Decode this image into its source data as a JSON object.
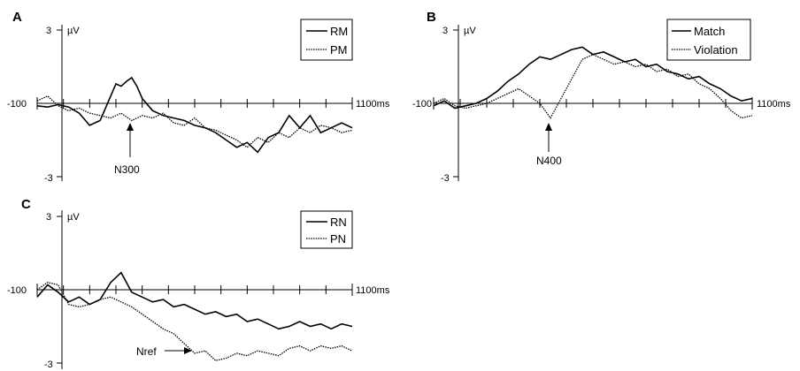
{
  "chart_data": [
    {
      "panel": "A",
      "type": "line",
      "x_start_label": "-100",
      "x_end_label": "1100ms",
      "y_top_label": "3",
      "y_bottom_label": "-3",
      "y_unit": "µV",
      "xlim": [
        -100,
        1100
      ],
      "ylim": [
        -3,
        3
      ],
      "legend_position": "top-right",
      "annotation": {
        "text": "N300",
        "x": 210,
        "y": -0.65,
        "direction": "up"
      },
      "series": [
        {
          "name": "RM",
          "style": "solid",
          "x": [
            -100,
            -60,
            -20,
            20,
            60,
            100,
            140,
            180,
            200,
            220,
            240,
            260,
            280,
            300,
            340,
            380,
            420,
            460,
            500,
            540,
            580,
            620,
            660,
            700,
            740,
            780,
            820,
            860,
            900,
            940,
            980,
            1020,
            1060,
            1100
          ],
          "y": [
            -0.1,
            -0.15,
            -0.05,
            -0.15,
            -0.4,
            -0.9,
            -0.7,
            0.3,
            0.8,
            0.7,
            0.9,
            1.05,
            0.7,
            0.2,
            -0.3,
            -0.5,
            -0.6,
            -0.7,
            -0.9,
            -1.0,
            -1.2,
            -1.5,
            -1.8,
            -1.6,
            -2.0,
            -1.4,
            -1.2,
            -0.5,
            -1.0,
            -0.5,
            -1.2,
            -1.0,
            -0.8,
            -1.0
          ]
        },
        {
          "name": "PM",
          "style": "dotted",
          "x": [
            -100,
            -60,
            -20,
            20,
            60,
            100,
            140,
            180,
            220,
            260,
            300,
            340,
            380,
            420,
            460,
            500,
            540,
            580,
            620,
            660,
            700,
            740,
            780,
            820,
            860,
            900,
            940,
            980,
            1020,
            1060,
            1100
          ],
          "y": [
            0.1,
            0.3,
            -0.1,
            -0.3,
            -0.2,
            -0.4,
            -0.5,
            -0.6,
            -0.4,
            -0.7,
            -0.5,
            -0.6,
            -0.4,
            -0.8,
            -0.9,
            -0.6,
            -1.0,
            -1.1,
            -1.3,
            -1.5,
            -1.8,
            -1.4,
            -1.6,
            -1.2,
            -1.4,
            -1.0,
            -1.2,
            -0.9,
            -1.0,
            -1.2,
            -1.1
          ]
        }
      ]
    },
    {
      "panel": "B",
      "type": "line",
      "x_start_label": "-100",
      "x_end_label": "1100ms",
      "y_top_label": "3",
      "y_bottom_label": "-3",
      "y_unit": "µV",
      "xlim": [
        -100,
        1100
      ],
      "ylim": [
        -3,
        3
      ],
      "legend_position": "top-right",
      "annotation": {
        "text": "N400",
        "x": 340,
        "y": -0.7,
        "direction": "up"
      },
      "series": [
        {
          "name": "Match",
          "style": "solid",
          "x": [
            -100,
            -60,
            -20,
            20,
            60,
            100,
            140,
            180,
            220,
            260,
            300,
            340,
            380,
            420,
            460,
            500,
            540,
            580,
            620,
            660,
            700,
            740,
            780,
            820,
            860,
            900,
            940,
            980,
            1020,
            1060,
            1100
          ],
          "y": [
            -0.1,
            0.1,
            -0.2,
            -0.1,
            0.0,
            0.2,
            0.5,
            0.9,
            1.2,
            1.6,
            1.9,
            1.8,
            2.0,
            2.2,
            2.3,
            2.0,
            2.1,
            1.9,
            1.7,
            1.8,
            1.5,
            1.6,
            1.3,
            1.2,
            1.0,
            1.1,
            0.8,
            0.6,
            0.3,
            0.1,
            0.2
          ]
        },
        {
          "name": "Violation",
          "style": "dotted",
          "x": [
            -100,
            -60,
            -20,
            20,
            60,
            100,
            140,
            180,
            220,
            260,
            300,
            340,
            380,
            420,
            460,
            500,
            540,
            580,
            620,
            660,
            700,
            740,
            780,
            820,
            860,
            900,
            940,
            980,
            1020,
            1060,
            1100
          ],
          "y": [
            0.0,
            0.2,
            -0.1,
            -0.2,
            -0.1,
            0.0,
            0.2,
            0.4,
            0.6,
            0.3,
            0.0,
            -0.6,
            0.2,
            1.0,
            1.8,
            2.0,
            1.8,
            1.6,
            1.7,
            1.5,
            1.6,
            1.3,
            1.4,
            1.1,
            1.2,
            0.8,
            0.6,
            0.2,
            -0.3,
            -0.6,
            -0.5
          ]
        }
      ]
    },
    {
      "panel": "C",
      "type": "line",
      "x_start_label": "-100",
      "x_end_label": "1100ms",
      "y_top_label": "3",
      "y_bottom_label": "-3",
      "y_unit": "µV",
      "xlim": [
        -100,
        1100
      ],
      "ylim": [
        -3,
        3
      ],
      "legend_position": "top-right",
      "annotation": {
        "text": "Nref",
        "x": 280,
        "y": -2.2,
        "direction": "right"
      },
      "series": [
        {
          "name": "RN",
          "style": "solid",
          "x": [
            -100,
            -60,
            -20,
            20,
            60,
            100,
            140,
            180,
            220,
            260,
            300,
            340,
            380,
            420,
            460,
            500,
            540,
            580,
            620,
            660,
            700,
            740,
            780,
            820,
            860,
            900,
            940,
            980,
            1020,
            1060,
            1100
          ],
          "y": [
            -0.3,
            0.2,
            -0.1,
            -0.5,
            -0.3,
            -0.6,
            -0.4,
            0.3,
            0.7,
            -0.1,
            -0.3,
            -0.5,
            -0.4,
            -0.7,
            -0.6,
            -0.8,
            -1.0,
            -0.9,
            -1.1,
            -1.0,
            -1.3,
            -1.2,
            -1.4,
            -1.6,
            -1.5,
            -1.3,
            -1.5,
            -1.4,
            -1.6,
            -1.4,
            -1.5
          ]
        },
        {
          "name": "PN",
          "style": "dotted",
          "x": [
            -100,
            -60,
            -20,
            20,
            60,
            100,
            140,
            180,
            220,
            260,
            300,
            340,
            380,
            420,
            460,
            500,
            540,
            580,
            620,
            660,
            700,
            740,
            780,
            820,
            860,
            900,
            940,
            980,
            1020,
            1060,
            1100
          ],
          "y": [
            0.0,
            0.3,
            0.2,
            -0.6,
            -0.7,
            -0.6,
            -0.4,
            -0.3,
            -0.5,
            -0.7,
            -1.0,
            -1.3,
            -1.6,
            -1.8,
            -2.2,
            -2.6,
            -2.5,
            -2.9,
            -2.8,
            -2.6,
            -2.7,
            -2.5,
            -2.6,
            -2.7,
            -2.4,
            -2.3,
            -2.5,
            -2.3,
            -2.4,
            -2.3,
            -2.5
          ]
        }
      ]
    }
  ]
}
